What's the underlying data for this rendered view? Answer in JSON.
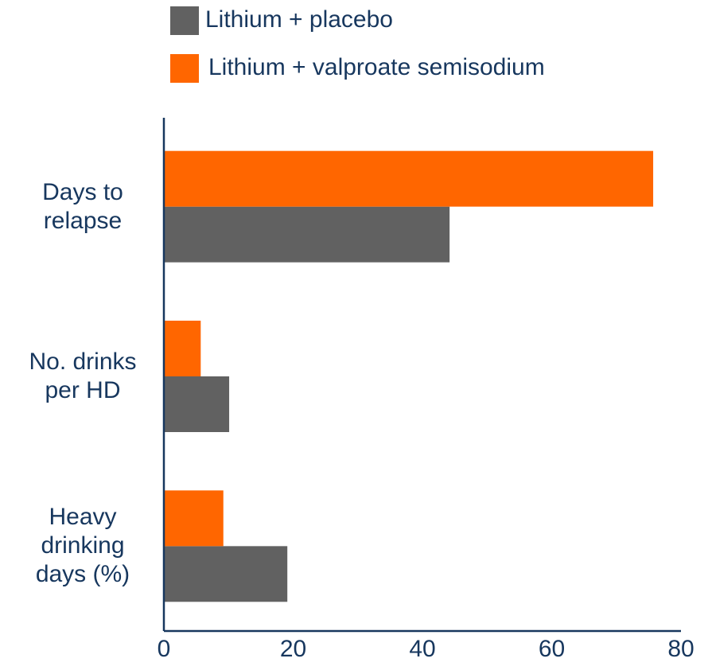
{
  "chart_data": {
    "type": "barh",
    "categories": [
      "Days to relapse",
      "No. drinks per HD",
      "Heavy drinking days (%)"
    ],
    "series": [
      {
        "name": "Lithium + placebo",
        "color": "#616161",
        "values": [
          44.2,
          10.1,
          19.1
        ]
      },
      {
        "name": "Lithium + valproate semisodium",
        "color": "#ff6600",
        "values": [
          75.7,
          5.7,
          9.2
        ]
      }
    ],
    "xlim": [
      0,
      80
    ],
    "xticks": [
      0,
      20,
      40,
      60,
      80
    ],
    "grid": false
  }
}
